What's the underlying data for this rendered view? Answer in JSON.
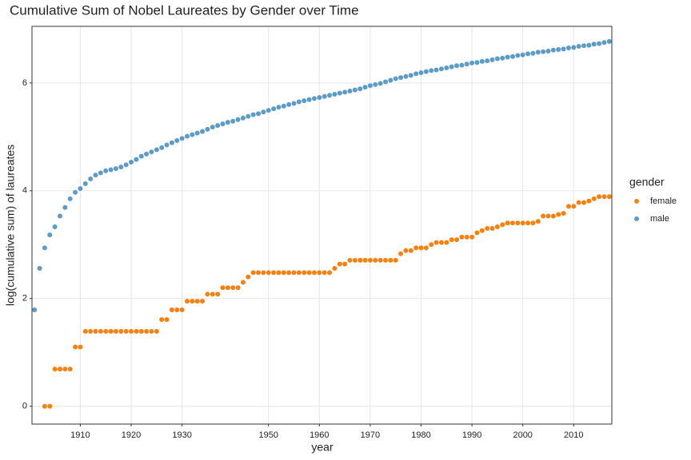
{
  "chart_data": {
    "type": "scatter",
    "title": "Cumulative Sum of Nobel Laureates by Gender over Time",
    "x_label": "year",
    "y_label": "log(cumulative sum) of laureates",
    "legend_title": "gender",
    "legend_position": "right",
    "grid": true,
    "categories": [
      null,
      null,
      null,
      null,
      null,
      null,
      null,
      null,
      null,
      "1910",
      null,
      null,
      null,
      null,
      null,
      null,
      null,
      null,
      null,
      "1920",
      null,
      null,
      null,
      null,
      null,
      null,
      null,
      null,
      null,
      "1930",
      null,
      null,
      null,
      null,
      null,
      null,
      null,
      null,
      null,
      null,
      null,
      null,
      null,
      null,
      null,
      null,
      "1950",
      null,
      null,
      null,
      null,
      null,
      null,
      null,
      null,
      null,
      "1960",
      null,
      null,
      null,
      null,
      null,
      null,
      null,
      null,
      null,
      "1970",
      null,
      null,
      null,
      null,
      null,
      null,
      null,
      null,
      null,
      "1980",
      null,
      null,
      null,
      null,
      null,
      null,
      null,
      null,
      null,
      "1990",
      null,
      null,
      null,
      null,
      null,
      null,
      null,
      null,
      null,
      "2000",
      null,
      null,
      null,
      null,
      null,
      null,
      null,
      null,
      null,
      "2010",
      null,
      null,
      null,
      null,
      null,
      null,
      null
    ],
    "ylim": [
      -0.33,
      7.05
    ],
    "yticks": [
      0,
      2,
      4,
      6
    ],
    "series": [
      {
        "name": "female",
        "color": "#f8800f",
        "values": [
          null,
          null,
          0,
          0,
          0.69,
          0.69,
          0.69,
          0.69,
          1.1,
          1.1,
          1.39,
          1.39,
          1.39,
          1.39,
          1.39,
          1.39,
          1.39,
          1.39,
          1.39,
          1.39,
          1.39,
          1.39,
          1.39,
          1.39,
          1.39,
          1.61,
          1.61,
          1.79,
          1.79,
          1.79,
          1.95,
          1.95,
          1.95,
          1.95,
          2.08,
          2.08,
          2.08,
          2.2,
          2.2,
          2.2,
          2.2,
          2.3,
          2.4,
          2.48,
          2.48,
          2.48,
          2.48,
          2.48,
          2.48,
          2.48,
          2.48,
          2.48,
          2.48,
          2.48,
          2.48,
          2.48,
          2.48,
          2.48,
          2.48,
          2.56,
          2.64,
          2.64,
          2.71,
          2.71,
          2.71,
          2.71,
          2.71,
          2.71,
          2.71,
          2.71,
          2.71,
          2.71,
          2.83,
          2.89,
          2.89,
          2.94,
          2.94,
          2.94,
          3.0,
          3.04,
          3.04,
          3.04,
          3.09,
          3.09,
          3.14,
          3.14,
          3.14,
          3.22,
          3.26,
          3.3,
          3.3,
          3.33,
          3.37,
          3.4,
          3.4,
          3.4,
          3.4,
          3.4,
          3.4,
          3.43,
          3.53,
          3.53,
          3.53,
          3.56,
          3.58,
          3.71,
          3.71,
          3.78,
          3.78,
          3.81,
          3.85,
          3.89,
          3.89,
          3.89
        ]
      },
      {
        "name": "male",
        "color": "#5b9bc8",
        "values": [
          1.79,
          2.56,
          2.94,
          3.18,
          3.33,
          3.53,
          3.69,
          3.85,
          3.97,
          4.04,
          4.13,
          4.22,
          4.29,
          4.33,
          4.37,
          4.39,
          4.41,
          4.44,
          4.48,
          4.53,
          4.58,
          4.64,
          4.68,
          4.72,
          4.76,
          4.8,
          4.85,
          4.89,
          4.93,
          4.97,
          5.01,
          5.04,
          5.07,
          5.1,
          5.14,
          5.18,
          5.21,
          5.24,
          5.27,
          5.29,
          5.32,
          5.35,
          5.38,
          5.41,
          5.43,
          5.46,
          5.49,
          5.52,
          5.55,
          5.57,
          5.6,
          5.62,
          5.65,
          5.67,
          5.69,
          5.71,
          5.73,
          5.75,
          5.77,
          5.79,
          5.81,
          5.83,
          5.85,
          5.87,
          5.89,
          5.92,
          5.95,
          5.97,
          5.99,
          6.02,
          6.05,
          6.08,
          6.1,
          6.12,
          6.14,
          6.17,
          6.19,
          6.21,
          6.23,
          6.24,
          6.26,
          6.28,
          6.3,
          6.32,
          6.33,
          6.35,
          6.37,
          6.38,
          6.4,
          6.41,
          6.43,
          6.45,
          6.46,
          6.48,
          6.49,
          6.51,
          6.52,
          6.54,
          6.55,
          6.57,
          6.58,
          6.59,
          6.61,
          6.62,
          6.63,
          6.65,
          6.66,
          6.68,
          6.69,
          6.7,
          6.72,
          6.73,
          6.75,
          6.77
        ]
      }
    ]
  }
}
